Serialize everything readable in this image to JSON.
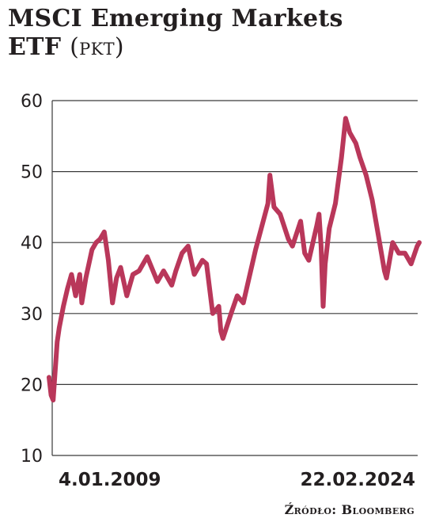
{
  "title": {
    "line1": "MSCI Emerging Markets",
    "line2_main": "ETF",
    "line2_unit": "(pkt)"
  },
  "source": "Źródło: Bloomberg",
  "colors": {
    "line": "#b9375a",
    "grid": "#3a3a3a",
    "text": "#231f20"
  },
  "chart_data": {
    "type": "line",
    "title": "MSCI Emerging Markets ETF (pkt)",
    "xlabel": "",
    "ylabel": "",
    "ylim": [
      10,
      60
    ],
    "yticks": [
      10,
      20,
      30,
      40,
      50,
      60
    ],
    "x_tick_labels": [
      "4.01.2009",
      "22.02.2024"
    ],
    "grid": true,
    "series": [
      {
        "x": [
          "2009-01",
          "2009-02",
          "2009-03",
          "2009-04",
          "2009-05",
          "2009-06",
          "2009-08",
          "2009-10",
          "2009-12",
          "2010-02",
          "2010-04",
          "2010-05",
          "2010-07",
          "2010-10",
          "2010-12",
          "2011-02",
          "2011-04",
          "2011-06",
          "2011-08",
          "2011-10",
          "2011-12",
          "2012-03",
          "2012-06",
          "2012-09",
          "2013-01",
          "2013-06",
          "2013-09",
          "2014-01",
          "2014-03",
          "2014-06",
          "2014-09",
          "2014-12",
          "2015-04",
          "2015-06",
          "2015-09",
          "2015-12",
          "2016-01",
          "2016-02",
          "2016-06",
          "2016-09",
          "2016-12",
          "2017-06",
          "2017-12",
          "2018-01",
          "2018-03",
          "2018-06",
          "2018-10",
          "2018-12",
          "2019-04",
          "2019-06",
          "2019-08",
          "2019-12",
          "2020-01",
          "2020-02",
          "2020-03",
          "2020-04",
          "2020-06",
          "2020-09",
          "2020-12",
          "2021-02",
          "2021-04",
          "2021-07",
          "2021-09",
          "2021-12",
          "2022-03",
          "2022-06",
          "2022-09",
          "2022-10",
          "2023-01",
          "2023-04",
          "2023-07",
          "2023-10",
          "2024-01",
          "2024-02"
        ],
        "values": [
          21,
          18.5,
          17.8,
          22,
          26,
          28,
          31,
          33.5,
          35.5,
          32.5,
          35.5,
          31.5,
          35,
          39,
          40,
          40.5,
          41.5,
          37.5,
          31.5,
          35,
          36.5,
          32.5,
          35.5,
          36,
          38,
          34.5,
          36,
          34,
          36,
          38.5,
          39.5,
          35.5,
          37.5,
          37,
          30,
          31,
          27.5,
          26.5,
          30,
          32.5,
          31.5,
          39,
          45.5,
          49.5,
          45,
          44,
          40.5,
          39.5,
          43,
          38.5,
          37.5,
          42.5,
          44,
          39.5,
          31,
          37,
          42,
          45.5,
          52,
          57.5,
          55.5,
          54,
          52,
          49.5,
          46,
          41,
          36,
          35,
          40,
          38.5,
          38.5,
          37,
          39.5,
          40
        ]
      }
    ]
  }
}
